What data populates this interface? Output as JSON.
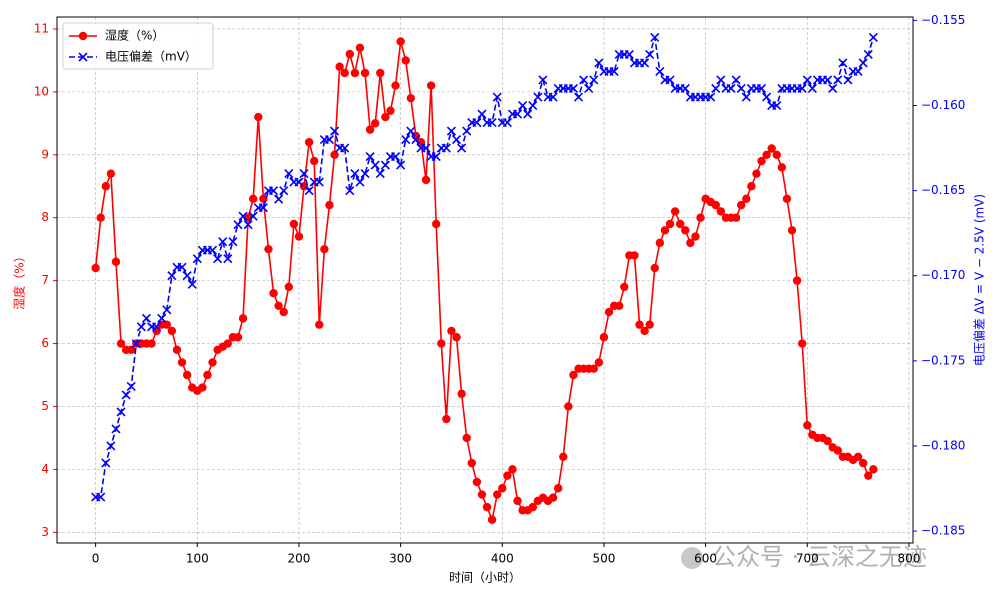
{
  "chart_data": {
    "type": "line",
    "xlabel": "时间（小时）",
    "ylabel": "湿度（%）",
    "y2label": "电压偏差 ΔV = V − 2.5V (mV)",
    "watermark": "公众号 · 云深之无迹",
    "legend": "upper left",
    "grid": true,
    "xlim": [
      -38,
      804
    ],
    "xticks": [
      0,
      100,
      200,
      300,
      400,
      500,
      600,
      700,
      800
    ],
    "ylim": [
      2.83,
      11.19
    ],
    "yticks": [
      3,
      4,
      5,
      6,
      7,
      8,
      9,
      10,
      11
    ],
    "y2lim": [
      -0.1857,
      -0.1548
    ],
    "y2ticks": [
      {
        "value": -0.155,
        "label": "−0.155"
      },
      {
        "value": -0.16,
        "label": "−0.160"
      },
      {
        "value": -0.165,
        "label": "−0.165"
      },
      {
        "value": -0.17,
        "label": "−0.170"
      },
      {
        "value": -0.175,
        "label": "−0.175"
      },
      {
        "value": -0.18,
        "label": "−0.180"
      },
      {
        "value": -0.185,
        "label": "−0.185"
      }
    ],
    "x": [
      0,
      5,
      10,
      15,
      20,
      25,
      30,
      35,
      40,
      45,
      50,
      55,
      60,
      65,
      70,
      75,
      80,
      85,
      90,
      95,
      100,
      105,
      110,
      115,
      120,
      125,
      130,
      135,
      140,
      145,
      150,
      155,
      160,
      165,
      170,
      175,
      180,
      185,
      190,
      195,
      200,
      205,
      210,
      215,
      220,
      225,
      230,
      235,
      240,
      245,
      250,
      255,
      260,
      265,
      270,
      275,
      280,
      285,
      290,
      295,
      300,
      305,
      310,
      315,
      320,
      325,
      330,
      335,
      340,
      345,
      350,
      355,
      360,
      365,
      370,
      375,
      380,
      385,
      390,
      395,
      400,
      405,
      410,
      415,
      420,
      425,
      430,
      435,
      440,
      445,
      450,
      455,
      460,
      465,
      470,
      475,
      480,
      485,
      490,
      495,
      500,
      505,
      510,
      515,
      520,
      525,
      530,
      535,
      540,
      545,
      550,
      555,
      560,
      565,
      570,
      575,
      580,
      585,
      590,
      595,
      600,
      605,
      610,
      615,
      620,
      625,
      630,
      635,
      640,
      645,
      650,
      655,
      660,
      665,
      670,
      675,
      680,
      685,
      690,
      695,
      700,
      705,
      710,
      715,
      720,
      725,
      730,
      735,
      740,
      745,
      750,
      755,
      760,
      765
    ],
    "series": [
      {
        "name": "湿度（%）",
        "color": "#ff0000",
        "axis": "y",
        "marker": "o",
        "linestyle": "-",
        "values": [
          7.2,
          8.0,
          8.5,
          8.7,
          7.3,
          6.0,
          5.9,
          5.9,
          6.0,
          6.0,
          6.0,
          6.0,
          6.2,
          6.3,
          6.3,
          6.2,
          5.9,
          5.7,
          5.5,
          5.3,
          5.25,
          5.3,
          5.5,
          5.7,
          5.9,
          5.95,
          6.0,
          6.1,
          6.1,
          6.4,
          8.0,
          8.3,
          9.6,
          8.3,
          7.5,
          6.8,
          6.6,
          6.5,
          6.9,
          7.9,
          7.7,
          8.5,
          9.2,
          8.9,
          6.3,
          7.5,
          8.2,
          9.0,
          10.4,
          10.3,
          10.6,
          10.3,
          10.7,
          10.3,
          9.4,
          9.5,
          10.3,
          9.6,
          9.7,
          10.1,
          10.8,
          10.5,
          9.9,
          9.3,
          9.2,
          8.6,
          10.1,
          7.9,
          6.0,
          4.8,
          6.2,
          6.1,
          5.2,
          4.5,
          4.1,
          3.8,
          3.6,
          3.4,
          3.2,
          3.6,
          3.7,
          3.9,
          4.0,
          3.5,
          3.35,
          3.35,
          3.4,
          3.5,
          3.55,
          3.5,
          3.55,
          3.7,
          4.2,
          5.0,
          5.5,
          5.6,
          5.6,
          5.6,
          5.6,
          5.7,
          6.1,
          6.5,
          6.6,
          6.6,
          6.9,
          7.4,
          7.4,
          6.3,
          6.2,
          6.3,
          7.2,
          7.6,
          7.8,
          7.9,
          8.1,
          7.9,
          7.8,
          7.6,
          7.7,
          8.0,
          8.3,
          8.25,
          8.2,
          8.1,
          8.0,
          8.0,
          8.0,
          8.2,
          8.3,
          8.5,
          8.7,
          8.9,
          9.0,
          9.1,
          9.0,
          8.8,
          8.3,
          7.8,
          7.0,
          6.0,
          4.7,
          4.55,
          4.5,
          4.5,
          4.45,
          4.35,
          4.3,
          4.2,
          4.2,
          4.15,
          4.2,
          4.1,
          3.9,
          4.0
        ]
      },
      {
        "name": "电压偏差（mV）",
        "color": "#0000ff",
        "axis": "y2",
        "marker": "x",
        "linestyle": "--",
        "values": [
          -0.183,
          -0.183,
          -0.181,
          -0.18,
          -0.179,
          -0.178,
          -0.177,
          -0.1765,
          -0.174,
          -0.173,
          -0.1725,
          -0.173,
          -0.173,
          -0.1725,
          -0.172,
          -0.17,
          -0.1695,
          -0.1695,
          -0.17,
          -0.1705,
          -0.169,
          -0.1685,
          -0.1685,
          -0.1685,
          -0.169,
          -0.168,
          -0.169,
          -0.168,
          -0.167,
          -0.1665,
          -0.167,
          -0.1665,
          -0.166,
          -0.166,
          -0.165,
          -0.165,
          -0.1655,
          -0.165,
          -0.164,
          -0.1645,
          -0.1645,
          -0.164,
          -0.165,
          -0.1645,
          -0.1645,
          -0.162,
          -0.162,
          -0.1615,
          -0.1625,
          -0.1625,
          -0.165,
          -0.164,
          -0.1645,
          -0.164,
          -0.163,
          -0.1635,
          -0.164,
          -0.1635,
          -0.163,
          -0.163,
          -0.1635,
          -0.162,
          -0.1615,
          -0.162,
          -0.1625,
          -0.1625,
          -0.163,
          -0.163,
          -0.1625,
          -0.1625,
          -0.1615,
          -0.162,
          -0.1625,
          -0.1615,
          -0.161,
          -0.161,
          -0.1605,
          -0.161,
          -0.161,
          -0.1595,
          -0.161,
          -0.161,
          -0.1605,
          -0.1605,
          -0.16,
          -0.1605,
          -0.16,
          -0.1595,
          -0.1585,
          -0.1595,
          -0.1595,
          -0.159,
          -0.159,
          -0.159,
          -0.159,
          -0.1595,
          -0.1585,
          -0.159,
          -0.1585,
          -0.1575,
          -0.158,
          -0.158,
          -0.158,
          -0.157,
          -0.157,
          -0.157,
          -0.1575,
          -0.1575,
          -0.1575,
          -0.157,
          -0.156,
          -0.158,
          -0.1585,
          -0.1585,
          -0.159,
          -0.159,
          -0.159,
          -0.1595,
          -0.1595,
          -0.1595,
          -0.1595,
          -0.1595,
          -0.159,
          -0.1585,
          -0.159,
          -0.159,
          -0.1585,
          -0.159,
          -0.1595,
          -0.159,
          -0.159,
          -0.159,
          -0.1595,
          -0.16,
          -0.16,
          -0.159,
          -0.159,
          -0.159,
          -0.159,
          -0.159,
          -0.1585,
          -0.159,
          -0.1585,
          -0.1585,
          -0.1585,
          -0.159,
          -0.1585,
          -0.1575,
          -0.1585,
          -0.158,
          -0.158,
          -0.1575,
          -0.157,
          -0.156
        ]
      }
    ]
  }
}
